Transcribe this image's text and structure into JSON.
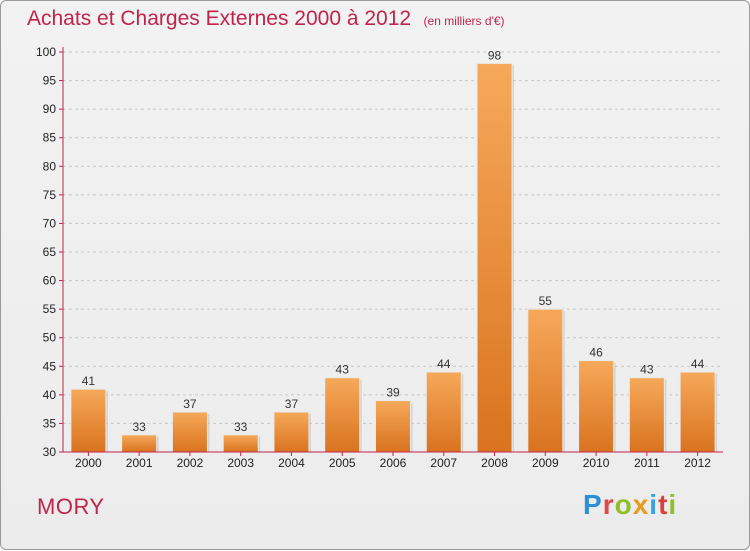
{
  "chart_data": {
    "type": "bar",
    "title": "Achats et Charges Externes 2000 à 2012",
    "subtitle": "(en milliers d'€)",
    "categories": [
      "2000",
      "2001",
      "2002",
      "2003",
      "2004",
      "2005",
      "2006",
      "2007",
      "2008",
      "2009",
      "2010",
      "2011",
      "2012"
    ],
    "values": [
      41,
      33,
      37,
      33,
      37,
      43,
      39,
      44,
      98,
      55,
      46,
      43,
      44
    ],
    "ylim": [
      30,
      100
    ],
    "yticks": [
      30,
      35,
      40,
      45,
      50,
      55,
      60,
      65,
      70,
      75,
      80,
      85,
      90,
      95,
      100
    ],
    "grid": "horizontal-dashed",
    "bar_color_top": "#f6a95a",
    "bar_color_bottom": "#d9731f",
    "axis_color": "#c0244a"
  },
  "footer": {
    "commune": "MORY",
    "logo": [
      "P",
      "r",
      "o",
      "x",
      "i",
      "t",
      "i"
    ]
  }
}
